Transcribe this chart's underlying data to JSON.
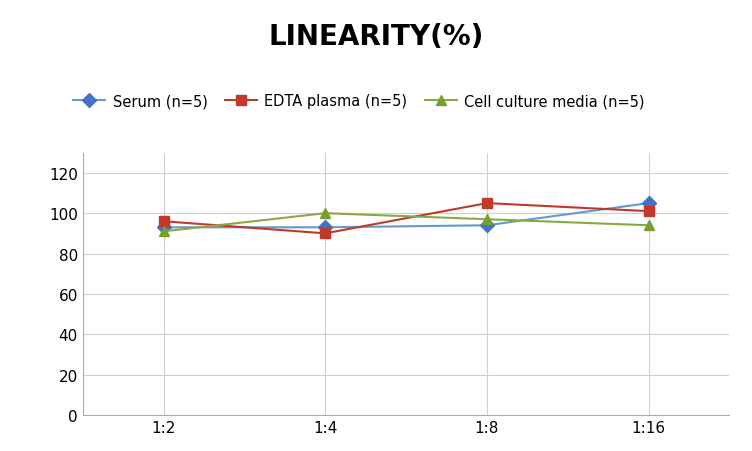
{
  "title": "LINEARITY(%)",
  "x_labels": [
    "1:2",
    "1:4",
    "1:8",
    "1:16"
  ],
  "x_positions": [
    0,
    1,
    2,
    3
  ],
  "series": [
    {
      "label": "Serum (n=5)",
      "values": [
        93,
        93,
        94,
        105
      ],
      "color": "#6699cc",
      "marker": "D",
      "marker_color": "#4472c4",
      "zorder": 3
    },
    {
      "label": "EDTA plasma (n=5)",
      "values": [
        96,
        90,
        105,
        101
      ],
      "color": "#c0392b",
      "marker": "s",
      "marker_color": "#c0392b",
      "zorder": 3
    },
    {
      "label": "Cell culture media (n=5)",
      "values": [
        91,
        100,
        97,
        94
      ],
      "color": "#88aa44",
      "marker": "^",
      "marker_color": "#7a9e2e",
      "zorder": 3
    }
  ],
  "ylim": [
    0,
    130
  ],
  "yticks": [
    0,
    20,
    40,
    60,
    80,
    100,
    120
  ],
  "background_color": "#ffffff",
  "grid_color": "#d0d0d0",
  "title_fontsize": 20,
  "legend_fontsize": 10.5,
  "tick_fontsize": 11
}
